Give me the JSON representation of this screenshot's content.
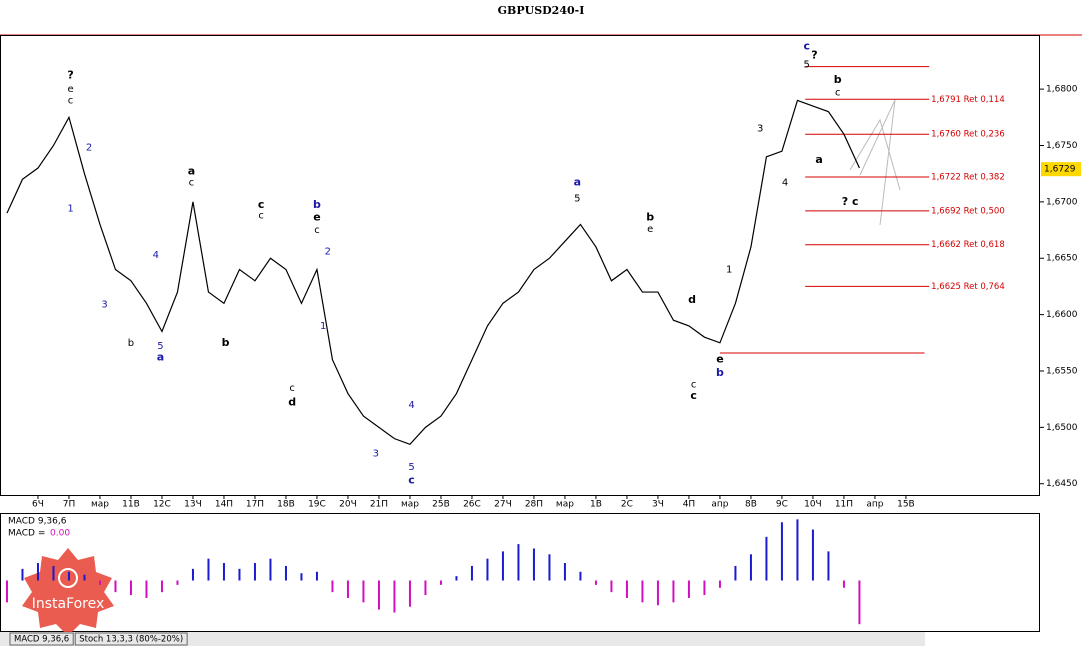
{
  "chart_data": {
    "type": "line",
    "title": "GBPUSD240-I",
    "x": [
      0,
      1,
      2,
      3,
      4,
      5,
      6,
      7,
      8,
      9,
      10,
      11,
      12,
      13,
      14,
      15,
      16,
      17,
      18,
      19,
      20,
      21,
      22,
      23,
      24,
      25,
      26,
      27,
      28,
      29,
      30,
      31,
      32,
      33,
      34,
      35,
      36,
      37,
      38,
      39,
      40,
      41,
      42,
      43,
      44,
      45,
      46,
      47,
      48,
      49,
      50,
      51,
      52,
      53,
      54,
      55
    ],
    "xlim": [
      -0.45,
      66.65
    ],
    "xticks": [
      {
        "value": 2,
        "label": "6Ч"
      },
      {
        "value": 4,
        "label": "7П"
      },
      {
        "value": 6,
        "label": "мар"
      },
      {
        "value": 8,
        "label": "11В"
      },
      {
        "value": 10,
        "label": "12С"
      },
      {
        "value": 12,
        "label": "13Ч"
      },
      {
        "value": 14,
        "label": "14П"
      },
      {
        "value": 16,
        "label": "17П"
      },
      {
        "value": 18,
        "label": "18В"
      },
      {
        "value": 20,
        "label": "19С"
      },
      {
        "value": 22,
        "label": "20Ч"
      },
      {
        "value": 24,
        "label": "21П"
      },
      {
        "value": 26,
        "label": "мар"
      },
      {
        "value": 28,
        "label": "25В"
      },
      {
        "value": 30,
        "label": "26С"
      },
      {
        "value": 32,
        "label": "27Ч"
      },
      {
        "value": 34,
        "label": "28П"
      },
      {
        "value": 36,
        "label": "мар"
      },
      {
        "value": 38,
        "label": "1В"
      },
      {
        "value": 40,
        "label": "2С"
      },
      {
        "value": 42,
        "label": "3Ч"
      },
      {
        "value": 44,
        "label": "4П"
      },
      {
        "value": 46,
        "label": "апр"
      },
      {
        "value": 48,
        "label": "8В"
      },
      {
        "value": 50,
        "label": "9С"
      },
      {
        "value": 52,
        "label": "10Ч"
      },
      {
        "value": 54,
        "label": "11П"
      },
      {
        "value": 56,
        "label": "апр"
      },
      {
        "value": 58,
        "label": "15В"
      }
    ],
    "ylim": [
      1.644,
      1.6848
    ],
    "yticks": [
      {
        "value": 1.68,
        "label": "1,6800"
      },
      {
        "value": 1.675,
        "label": "1,6750"
      },
      {
        "value": 1.67,
        "label": "1,6700"
      },
      {
        "value": 1.665,
        "label": "1,6650"
      },
      {
        "value": 1.66,
        "label": "1,6600"
      },
      {
        "value": 1.655,
        "label": "1,6550"
      },
      {
        "value": 1.65,
        "label": "1,6500"
      },
      {
        "value": 1.645,
        "label": "1,6450"
      }
    ],
    "series": [
      {
        "color": "#000000",
        "values": [
          1.669,
          1.672,
          1.673,
          1.675,
          1.6775,
          1.6725,
          1.668,
          1.664,
          1.663,
          1.661,
          1.6585,
          1.662,
          1.67,
          1.662,
          1.661,
          1.664,
          1.663,
          1.665,
          1.664,
          1.661,
          1.664,
          1.656,
          1.653,
          1.651,
          1.65,
          1.649,
          1.6485,
          1.65,
          1.651,
          1.653,
          1.656,
          1.659,
          1.661,
          1.662,
          1.664,
          1.665,
          1.6665,
          1.668,
          1.666,
          1.663,
          1.664,
          1.662,
          1.662,
          1.6595,
          1.659,
          1.658,
          1.6575,
          1.661,
          1.666,
          1.674,
          1.6745,
          1.679,
          1.6785,
          1.678,
          1.676,
          1.673
        ]
      }
    ],
    "current_price": {
      "value": 1.6729,
      "label": "1,6729"
    },
    "levels_color": "#d40000",
    "levels": [
      {
        "value": 1.6791,
        "label": "1,6791 Ret 0,114"
      },
      {
        "value": 1.676,
        "label": "1,6760 Ret 0,236"
      },
      {
        "value": 1.6722,
        "label": "1,6722 Ret 0,382"
      },
      {
        "value": 1.6692,
        "label": "1,6692 Ret 0,500"
      },
      {
        "value": 1.6662,
        "label": "1,6662 Ret 0,618"
      },
      {
        "value": 1.6625,
        "label": "1,6625 Ret 0,764"
      }
    ],
    "extra_levels": [
      1.682,
      1.6566
    ],
    "annotations": [
      {
        "text": "?",
        "x": 4.1,
        "y": 1.6812,
        "color": "#000000",
        "bold": true
      },
      {
        "text": "e",
        "x": 4.1,
        "y": 1.68,
        "color": "#000000",
        "bold": false
      },
      {
        "text": "c",
        "x": 4.1,
        "y": 1.679,
        "color": "#000000",
        "bold": false
      },
      {
        "text": "2",
        "x": 5.3,
        "y": 1.6748,
        "color": "#1a1aa6",
        "bold": false
      },
      {
        "text": "1",
        "x": 4.1,
        "y": 1.6694,
        "color": "#1a1aa6",
        "bold": false
      },
      {
        "text": "3",
        "x": 6.3,
        "y": 1.6609,
        "color": "#1a1aa6",
        "bold": false
      },
      {
        "text": "b",
        "x": 8.0,
        "y": 1.6575,
        "color": "#000000",
        "bold": false
      },
      {
        "text": "4",
        "x": 9.6,
        "y": 1.6653,
        "color": "#1a1aa6",
        "bold": false
      },
      {
        "text": "5",
        "x": 9.9,
        "y": 1.6572,
        "color": "#1a1aa6",
        "bold": false
      },
      {
        "text": "a",
        "x": 9.9,
        "y": 1.6562,
        "color": "#1a1aa6",
        "bold": true
      },
      {
        "text": "a",
        "x": 11.9,
        "y": 1.6727,
        "color": "#000000",
        "bold": true
      },
      {
        "text": "c",
        "x": 11.9,
        "y": 1.6717,
        "color": "#000000",
        "bold": false
      },
      {
        "text": "b",
        "x": 14.1,
        "y": 1.6575,
        "color": "#000000",
        "bold": true
      },
      {
        "text": "c",
        "x": 16.4,
        "y": 1.6697,
        "color": "#000000",
        "bold": true
      },
      {
        "text": "c",
        "x": 16.4,
        "y": 1.6688,
        "color": "#000000",
        "bold": false
      },
      {
        "text": "b",
        "x": 20.0,
        "y": 1.6697,
        "color": "#1a1aa6",
        "bold": true
      },
      {
        "text": "e",
        "x": 20.0,
        "y": 1.6686,
        "color": "#000000",
        "bold": true
      },
      {
        "text": "c",
        "x": 20.0,
        "y": 1.6675,
        "color": "#000000",
        "bold": false
      },
      {
        "text": "2",
        "x": 20.7,
        "y": 1.6656,
        "color": "#1a1aa6",
        "bold": false
      },
      {
        "text": "1",
        "x": 20.4,
        "y": 1.659,
        "color": "#1a1aa6",
        "bold": false
      },
      {
        "text": "c",
        "x": 18.4,
        "y": 1.6535,
        "color": "#000000",
        "bold": false
      },
      {
        "text": "d",
        "x": 18.4,
        "y": 1.6522,
        "color": "#000000",
        "bold": true
      },
      {
        "text": "3",
        "x": 23.8,
        "y": 1.6477,
        "color": "#1a1aa6",
        "bold": false
      },
      {
        "text": "4",
        "x": 26.1,
        "y": 1.652,
        "color": "#1a1aa6",
        "bold": false
      },
      {
        "text": "5",
        "x": 26.1,
        "y": 1.6465,
        "color": "#1a1aa6",
        "bold": false
      },
      {
        "text": "c",
        "x": 26.1,
        "y": 1.6453,
        "color": "#1a1aa6",
        "bold": true
      },
      {
        "text": "a",
        "x": 36.8,
        "y": 1.6717,
        "color": "#1a1aa6",
        "bold": true
      },
      {
        "text": "5",
        "x": 36.8,
        "y": 1.6703,
        "color": "#000000",
        "bold": false
      },
      {
        "text": "b",
        "x": 41.5,
        "y": 1.6686,
        "color": "#000000",
        "bold": true
      },
      {
        "text": "e",
        "x": 41.5,
        "y": 1.6676,
        "color": "#000000",
        "bold": false
      },
      {
        "text": "d",
        "x": 44.2,
        "y": 1.6613,
        "color": "#000000",
        "bold": true
      },
      {
        "text": "c",
        "x": 44.3,
        "y": 1.6538,
        "color": "#000000",
        "bold": false
      },
      {
        "text": "c",
        "x": 44.3,
        "y": 1.6528,
        "color": "#000000",
        "bold": true
      },
      {
        "text": "e",
        "x": 46.0,
        "y": 1.656,
        "color": "#000000",
        "bold": true
      },
      {
        "text": "b",
        "x": 46.0,
        "y": 1.6548,
        "color": "#1a1aa6",
        "bold": true
      },
      {
        "text": "1",
        "x": 46.6,
        "y": 1.664,
        "color": "#000000",
        "bold": false
      },
      {
        "text": "3",
        "x": 48.6,
        "y": 1.6765,
        "color": "#000000",
        "bold": false
      },
      {
        "text": "4",
        "x": 50.2,
        "y": 1.6717,
        "color": "#000000",
        "bold": false
      },
      {
        "text": "c",
        "x": 51.6,
        "y": 1.6838,
        "color": "#1a1aa6",
        "bold": true
      },
      {
        "text": "?",
        "x": 52.1,
        "y": 1.683,
        "color": "#000000",
        "bold": true
      },
      {
        "text": "5",
        "x": 51.6,
        "y": 1.6822,
        "color": "#000000",
        "bold": false
      },
      {
        "text": "b",
        "x": 53.6,
        "y": 1.6808,
        "color": "#000000",
        "bold": true
      },
      {
        "text": "c",
        "x": 53.6,
        "y": 1.6797,
        "color": "#000000",
        "bold": false
      },
      {
        "text": "a",
        "x": 52.4,
        "y": 1.6737,
        "color": "#000000",
        "bold": true
      },
      {
        "text": "? c",
        "x": 54.4,
        "y": 1.67,
        "color": "#000000",
        "bold": true
      }
    ],
    "macd": {
      "name": "MACD 9,36,6",
      "value_prefix": "MACD =",
      "value_text": "0.00",
      "ylim": [
        -0.0034,
        0.0045
      ],
      "up_color": "#1a1ad0",
      "down_color": "#d010c0",
      "values": [
        -0.0015,
        0.0008,
        0.0012,
        0.001,
        0.0006,
        0.0004,
        -0.0003,
        -0.0008,
        -0.001,
        -0.0012,
        -0.0008,
        -0.0003,
        0.0008,
        0.0015,
        0.0012,
        0.0008,
        0.0012,
        0.0015,
        0.001,
        0.0005,
        0.0006,
        -0.0008,
        -0.0012,
        -0.0015,
        -0.002,
        -0.0022,
        -0.0018,
        -0.001,
        -0.0003,
        0.0003,
        0.001,
        0.0015,
        0.002,
        0.0025,
        0.0022,
        0.0018,
        0.0012,
        0.0006,
        -0.0003,
        -0.0008,
        -0.0012,
        -0.0015,
        -0.0017,
        -0.0015,
        -0.0012,
        -0.001,
        -0.0005,
        0.001,
        0.0018,
        0.003,
        0.004,
        0.0042,
        0.0035,
        0.002,
        -0.0005,
        -0.003
      ]
    },
    "tabs": [
      "MACD 9,36,6",
      "Stoch 13,3,3 (80%-20%)"
    ],
    "logo": "InstaForex"
  }
}
